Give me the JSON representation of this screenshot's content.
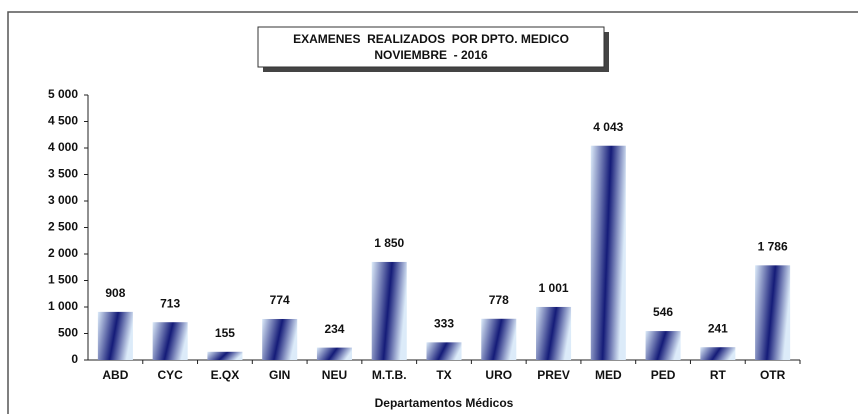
{
  "chart_data": {
    "type": "bar",
    "title": "EXAMENES  REALIZADOS  POR DPTO. MEDICO",
    "subtitle": "NOVIEMBRE  - 2016",
    "x_label": "Departamentos Médicos",
    "categories": [
      "ABD",
      "CYC",
      "E.QX",
      "GIN",
      "NEU",
      "M.T.B.",
      "TX",
      "URO",
      "PREV",
      "MED",
      "PED",
      "RT",
      "OTR"
    ],
    "values": [
      908,
      713,
      155,
      774,
      234,
      1850,
      333,
      778,
      1001,
      4043,
      546,
      241,
      1786
    ],
    "value_labels": [
      "908",
      "713",
      "155",
      "774",
      "234",
      "1 850",
      "333",
      "778",
      "1 001",
      "4 043",
      "546",
      "241",
      "1 786"
    ],
    "colors": [
      "#141b78",
      "#dcebf9"
    ],
    "ylim": [
      0,
      5000
    ],
    "yticks": [
      0,
      500,
      {
        "value": 1000,
        "label": "1 000"
      },
      {
        "value": 1500,
        "label": "1 500"
      },
      {
        "value": 2000,
        "label": "2 000"
      },
      {
        "value": 2500,
        "label": "2 500"
      },
      {
        "value": 3000,
        "label": "3 000"
      },
      {
        "value": 3500,
        "label": "3 500"
      },
      {
        "value": 4000,
        "label": "4 000"
      },
      {
        "value": 4500,
        "label": "4 500"
      },
      {
        "value": 5000,
        "label": "5 000"
      }
    ],
    "grid": false
  }
}
